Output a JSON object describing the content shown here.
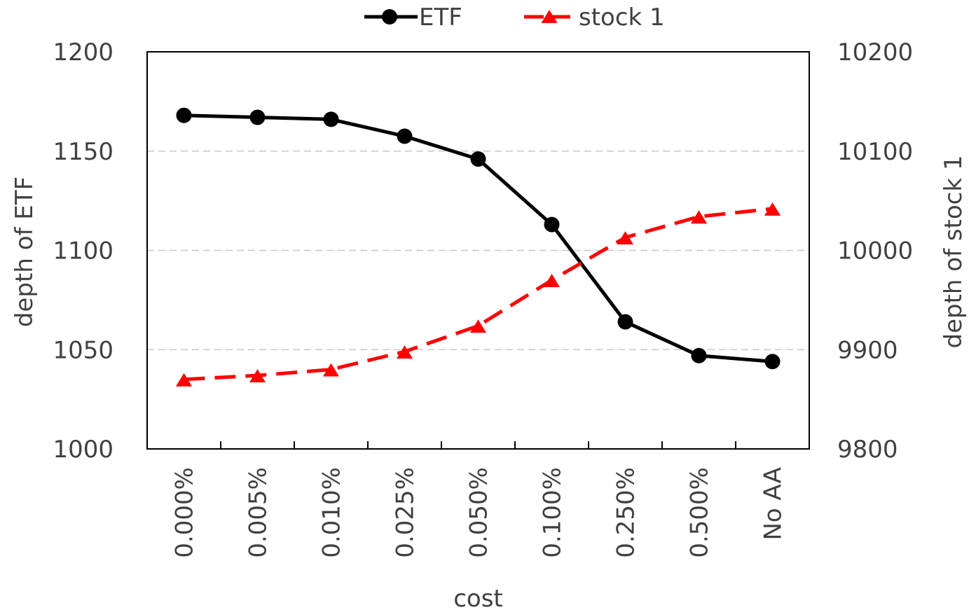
{
  "chart_data": {
    "type": "line",
    "categories": [
      "0.000%",
      "0.005%",
      "0.010%",
      "0.025%",
      "0.050%",
      "0.100%",
      "0.250%",
      "0.500%",
      "No AA"
    ],
    "xlabel": "cost",
    "ylabel_left": "depth of ETF",
    "ylabel_right": "depth of stock 1",
    "ylim_left": [
      1000,
      1200
    ],
    "ylim_right": [
      9800,
      10200
    ],
    "yticks_left": [
      "1000",
      "1050",
      "1100",
      "1150",
      "1200"
    ],
    "yticks_right": [
      "9800",
      "9900",
      "10000",
      "10100",
      "10200"
    ],
    "grid": "horizontal dashed",
    "legend_position": "top",
    "series": [
      {
        "name": "ETF",
        "axis": "left",
        "color": "#000000",
        "line_style": "solid",
        "marker": "circle",
        "values": [
          1168,
          1167,
          1166,
          1157.5,
          1146,
          1113,
          1064,
          1047,
          1044
        ]
      },
      {
        "name": "stock 1",
        "axis": "right",
        "color": "#ff0000",
        "line_style": "dashed",
        "marker": "triangle",
        "values": [
          9870,
          9874,
          9880,
          9898,
          9924,
          9970,
          10013,
          10034,
          10042
        ]
      }
    ]
  }
}
